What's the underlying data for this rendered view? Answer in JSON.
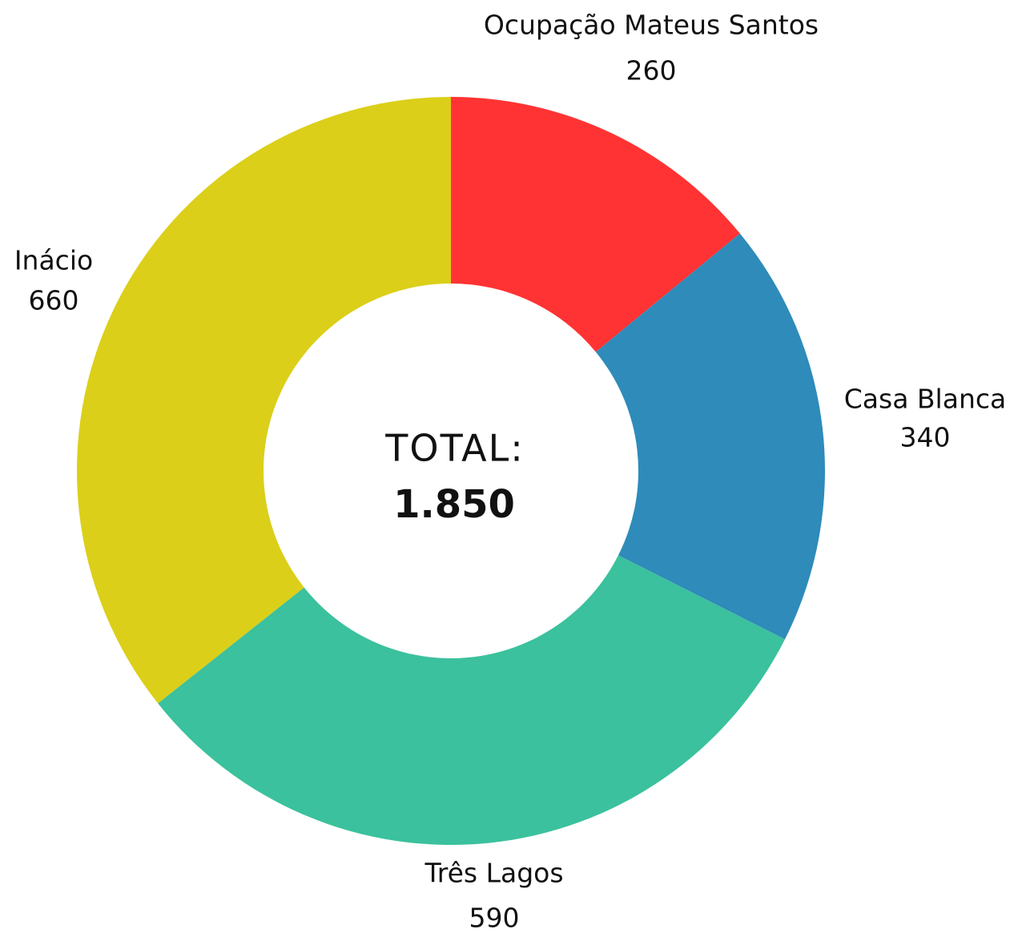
{
  "chart_data": {
    "type": "donut",
    "categories": [
      "Ocupação Mateus Santos",
      "Casa Blanca",
      "Três Lagos",
      "Inácio"
    ],
    "values": [
      260,
      340,
      590,
      660
    ],
    "colors": [
      "#ff3333",
      "#2e8bba",
      "#3bc19d",
      "#dbcf19"
    ],
    "center_title": "TOTAL:",
    "total": {
      "value": 1850,
      "label": "1.850"
    }
  }
}
